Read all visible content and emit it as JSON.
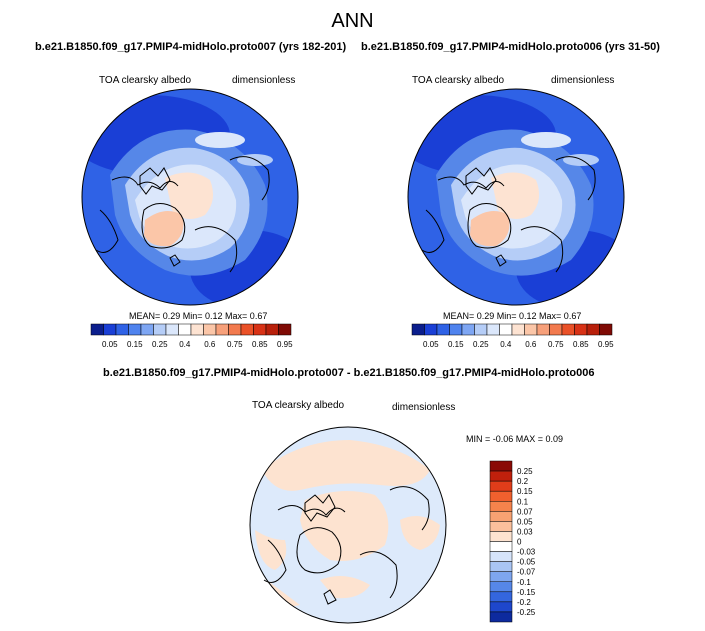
{
  "title": "ANN",
  "panels": [
    {
      "title": "b.e21.B1850.f09_g17.PMIP4-midHolo.proto007 (yrs 182-201)",
      "variable": "TOA clearsky albedo",
      "units": "dimensionless",
      "stats": {
        "mean": "0.29",
        "min": "0.12",
        "max": "0.67"
      },
      "stats_text": "MEAN=   0.29  Min=    0.12  Max=    0.67"
    },
    {
      "title": "b.e21.B1850.f09_g17.PMIP4-midHolo.proto006 (yrs 31-50)",
      "variable": "TOA clearsky albedo",
      "units": "dimensionless",
      "stats": {
        "mean": "0.29",
        "min": "0.12",
        "max": "0.67"
      },
      "stats_text": "MEAN=   0.29  Min=    0.12  Max=    0.67"
    }
  ],
  "diff_panel": {
    "title": "b.e21.B1850.f09_g17.PMIP4-midHolo.proto007 - b.e21.B1850.f09_g17.PMIP4-midHolo.proto006",
    "variable": "TOA clearsky albedo",
    "units": "dimensionless",
    "stats": {
      "min": "-0.06",
      "max": "0.09"
    },
    "stats_text": "MIN =  -0.06 MAX =    0.09"
  },
  "colorbar_abs": {
    "labels": [
      "0.05",
      "0.15",
      "0.25",
      "0.4",
      "0.6",
      "0.75",
      "0.85",
      "0.95"
    ],
    "colors": [
      "#0b1e8c",
      "#1a3fd6",
      "#2f62e6",
      "#4f83ee",
      "#7ea6f3",
      "#b5cdf7",
      "#dbe7fb",
      "#ffffff",
      "#fde3d2",
      "#fbc6a8",
      "#f7a07a",
      "#f27a4e",
      "#ea5128",
      "#d83216",
      "#b8200b",
      "#7f0a05"
    ]
  },
  "colorbar_diff": {
    "labels": [
      "0.25",
      "0.2",
      "0.15",
      "0.1",
      "0.07",
      "0.05",
      "0.03",
      "0",
      "-0.03",
      "-0.05",
      "-0.07",
      "-0.1",
      "-0.15",
      "-0.2",
      "-0.25"
    ],
    "colors": [
      "#8a0a05",
      "#c0200c",
      "#e03d1a",
      "#f0602e",
      "#f5834c",
      "#f8a272",
      "#fbc09c",
      "#fde3d0",
      "#ffffff",
      "#d6e4fa",
      "#a9c5f4",
      "#7ea6ef",
      "#5687e8",
      "#3466de",
      "#1e47cc",
      "#0d2a9e"
    ]
  },
  "colors": {
    "ocean_blue": "#3a6fe6",
    "ice_light": "#dbe7fb",
    "land_peach": "#fde3d0",
    "diff_light": "#ddeafb"
  }
}
